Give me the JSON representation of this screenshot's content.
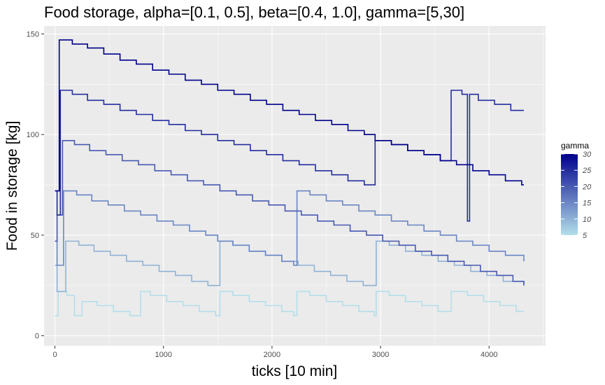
{
  "chart_data": {
    "type": "line",
    "title": "Food storage, alpha=[0.1, 0.5], beta=[0.4, 1.0], gamma=[5,30]",
    "xlabel": "ticks [10 min]",
    "ylabel": "Food in storage [kg]",
    "xlim": [
      -100,
      4520
    ],
    "ylim": [
      -5,
      154
    ],
    "x_ticks": [
      0,
      1000,
      2000,
      3000,
      4000
    ],
    "y_ticks": [
      0,
      50,
      100,
      150
    ],
    "grid": true,
    "background": "#ebebeb",
    "legend": {
      "title": "gamma",
      "position": "right",
      "ticks": [
        5,
        10,
        15,
        20,
        25,
        30
      ],
      "range": [
        5,
        30
      ],
      "low_color": "#b3dfea",
      "high_color": "#00008b"
    },
    "series": [
      {
        "gamma": 30,
        "values": [
          [
            0,
            72
          ],
          [
            20,
            72
          ],
          [
            40,
            147
          ],
          [
            150,
            147
          ],
          [
            160,
            145
          ],
          [
            300,
            143
          ],
          [
            450,
            140
          ],
          [
            600,
            137
          ],
          [
            750,
            135
          ],
          [
            900,
            132
          ],
          [
            1050,
            130
          ],
          [
            1200,
            127
          ],
          [
            1350,
            125
          ],
          [
            1500,
            122
          ],
          [
            1650,
            120
          ],
          [
            1800,
            117
          ],
          [
            1950,
            115
          ],
          [
            2100,
            112
          ],
          [
            2250,
            110
          ],
          [
            2400,
            107
          ],
          [
            2550,
            105
          ],
          [
            2700,
            102
          ],
          [
            2850,
            100
          ],
          [
            2950,
            97
          ],
          [
            3100,
            95
          ],
          [
            3250,
            92
          ],
          [
            3400,
            90
          ],
          [
            3550,
            87
          ],
          [
            3700,
            85
          ],
          [
            3850,
            82
          ],
          [
            4000,
            80
          ],
          [
            4150,
            77
          ],
          [
            4300,
            75
          ],
          [
            4320,
            75
          ]
        ]
      },
      {
        "gamma": 25,
        "values": [
          [
            0,
            72
          ],
          [
            20,
            60
          ],
          [
            50,
            122
          ],
          [
            160,
            120
          ],
          [
            300,
            117
          ],
          [
            450,
            115
          ],
          [
            600,
            112
          ],
          [
            750,
            110
          ],
          [
            900,
            107
          ],
          [
            1050,
            105
          ],
          [
            1200,
            102
          ],
          [
            1350,
            100
          ],
          [
            1500,
            97
          ],
          [
            1650,
            95
          ],
          [
            1800,
            92
          ],
          [
            1950,
            90
          ],
          [
            2100,
            87
          ],
          [
            2250,
            85
          ],
          [
            2400,
            82
          ],
          [
            2550,
            80
          ],
          [
            2700,
            77
          ],
          [
            2850,
            75
          ],
          [
            2950,
            97
          ],
          [
            3100,
            95
          ],
          [
            3250,
            92
          ],
          [
            3400,
            90
          ],
          [
            3550,
            87
          ],
          [
            3650,
            122
          ],
          [
            3750,
            120
          ],
          [
            3800,
            57
          ],
          [
            3820,
            120
          ],
          [
            3900,
            117
          ],
          [
            4050,
            115
          ],
          [
            4200,
            112
          ],
          [
            4320,
            112
          ]
        ]
      },
      {
        "gamma": 20,
        "values": [
          [
            0,
            47
          ],
          [
            20,
            60
          ],
          [
            70,
            97
          ],
          [
            180,
            95
          ],
          [
            320,
            92
          ],
          [
            470,
            90
          ],
          [
            620,
            87
          ],
          [
            770,
            85
          ],
          [
            920,
            82
          ],
          [
            1070,
            80
          ],
          [
            1220,
            77
          ],
          [
            1370,
            75
          ],
          [
            1520,
            72
          ],
          [
            1670,
            70
          ],
          [
            1820,
            67
          ],
          [
            1970,
            65
          ],
          [
            2120,
            62
          ],
          [
            2270,
            60
          ],
          [
            2420,
            57
          ],
          [
            2570,
            55
          ],
          [
            2720,
            52
          ],
          [
            2870,
            50
          ],
          [
            3020,
            47
          ],
          [
            3170,
            45
          ],
          [
            3320,
            42
          ],
          [
            3470,
            40
          ],
          [
            3620,
            37
          ],
          [
            3770,
            35
          ],
          [
            3920,
            32
          ],
          [
            4070,
            30
          ],
          [
            4220,
            27
          ],
          [
            4320,
            25
          ]
        ]
      },
      {
        "gamma": 15,
        "values": [
          [
            0,
            47
          ],
          [
            20,
            35
          ],
          [
            80,
            72
          ],
          [
            200,
            70
          ],
          [
            340,
            67
          ],
          [
            490,
            65
          ],
          [
            640,
            62
          ],
          [
            790,
            60
          ],
          [
            940,
            57
          ],
          [
            1090,
            55
          ],
          [
            1240,
            52
          ],
          [
            1390,
            50
          ],
          [
            1500,
            47
          ],
          [
            1640,
            45
          ],
          [
            1790,
            42
          ],
          [
            1940,
            40
          ],
          [
            2090,
            37
          ],
          [
            2200,
            35
          ],
          [
            2230,
            72
          ],
          [
            2350,
            70
          ],
          [
            2500,
            67
          ],
          [
            2650,
            65
          ],
          [
            2800,
            62
          ],
          [
            2950,
            60
          ],
          [
            3100,
            57
          ],
          [
            3250,
            55
          ],
          [
            3400,
            52
          ],
          [
            3550,
            50
          ],
          [
            3700,
            47
          ],
          [
            3850,
            45
          ],
          [
            4000,
            42
          ],
          [
            4150,
            40
          ],
          [
            4320,
            37
          ]
        ]
      },
      {
        "gamma": 10,
        "values": [
          [
            0,
            35
          ],
          [
            20,
            22
          ],
          [
            100,
            47
          ],
          [
            220,
            45
          ],
          [
            360,
            42
          ],
          [
            510,
            40
          ],
          [
            660,
            37
          ],
          [
            810,
            35
          ],
          [
            960,
            32
          ],
          [
            1110,
            30
          ],
          [
            1260,
            27
          ],
          [
            1410,
            25
          ],
          [
            1520,
            47
          ],
          [
            1640,
            45
          ],
          [
            1790,
            42
          ],
          [
            1940,
            40
          ],
          [
            2090,
            37
          ],
          [
            2240,
            35
          ],
          [
            2390,
            32
          ],
          [
            2540,
            30
          ],
          [
            2690,
            27
          ],
          [
            2840,
            25
          ],
          [
            2960,
            47
          ],
          [
            3080,
            45
          ],
          [
            3230,
            42
          ],
          [
            3380,
            40
          ],
          [
            3530,
            37
          ],
          [
            3680,
            35
          ],
          [
            3830,
            32
          ],
          [
            3980,
            30
          ],
          [
            4130,
            27
          ],
          [
            4320,
            25
          ]
        ]
      },
      {
        "gamma": 5,
        "values": [
          [
            0,
            10
          ],
          [
            20,
            10
          ],
          [
            30,
            22
          ],
          [
            110,
            20
          ],
          [
            180,
            10
          ],
          [
            250,
            17
          ],
          [
            390,
            15
          ],
          [
            540,
            12
          ],
          [
            690,
            10
          ],
          [
            790,
            22
          ],
          [
            880,
            20
          ],
          [
            1030,
            17
          ],
          [
            1180,
            15
          ],
          [
            1330,
            12
          ],
          [
            1480,
            10
          ],
          [
            1520,
            22
          ],
          [
            1640,
            20
          ],
          [
            1790,
            17
          ],
          [
            1940,
            15
          ],
          [
            2090,
            12
          ],
          [
            2200,
            10
          ],
          [
            2230,
            22
          ],
          [
            2350,
            20
          ],
          [
            2500,
            17
          ],
          [
            2650,
            15
          ],
          [
            2800,
            12
          ],
          [
            2940,
            10
          ],
          [
            2960,
            22
          ],
          [
            3080,
            20
          ],
          [
            3230,
            17
          ],
          [
            3380,
            15
          ],
          [
            3530,
            12
          ],
          [
            3650,
            22
          ],
          [
            3800,
            20
          ],
          [
            3950,
            17
          ],
          [
            4100,
            15
          ],
          [
            4250,
            12
          ],
          [
            4320,
            12
          ]
        ]
      }
    ]
  }
}
